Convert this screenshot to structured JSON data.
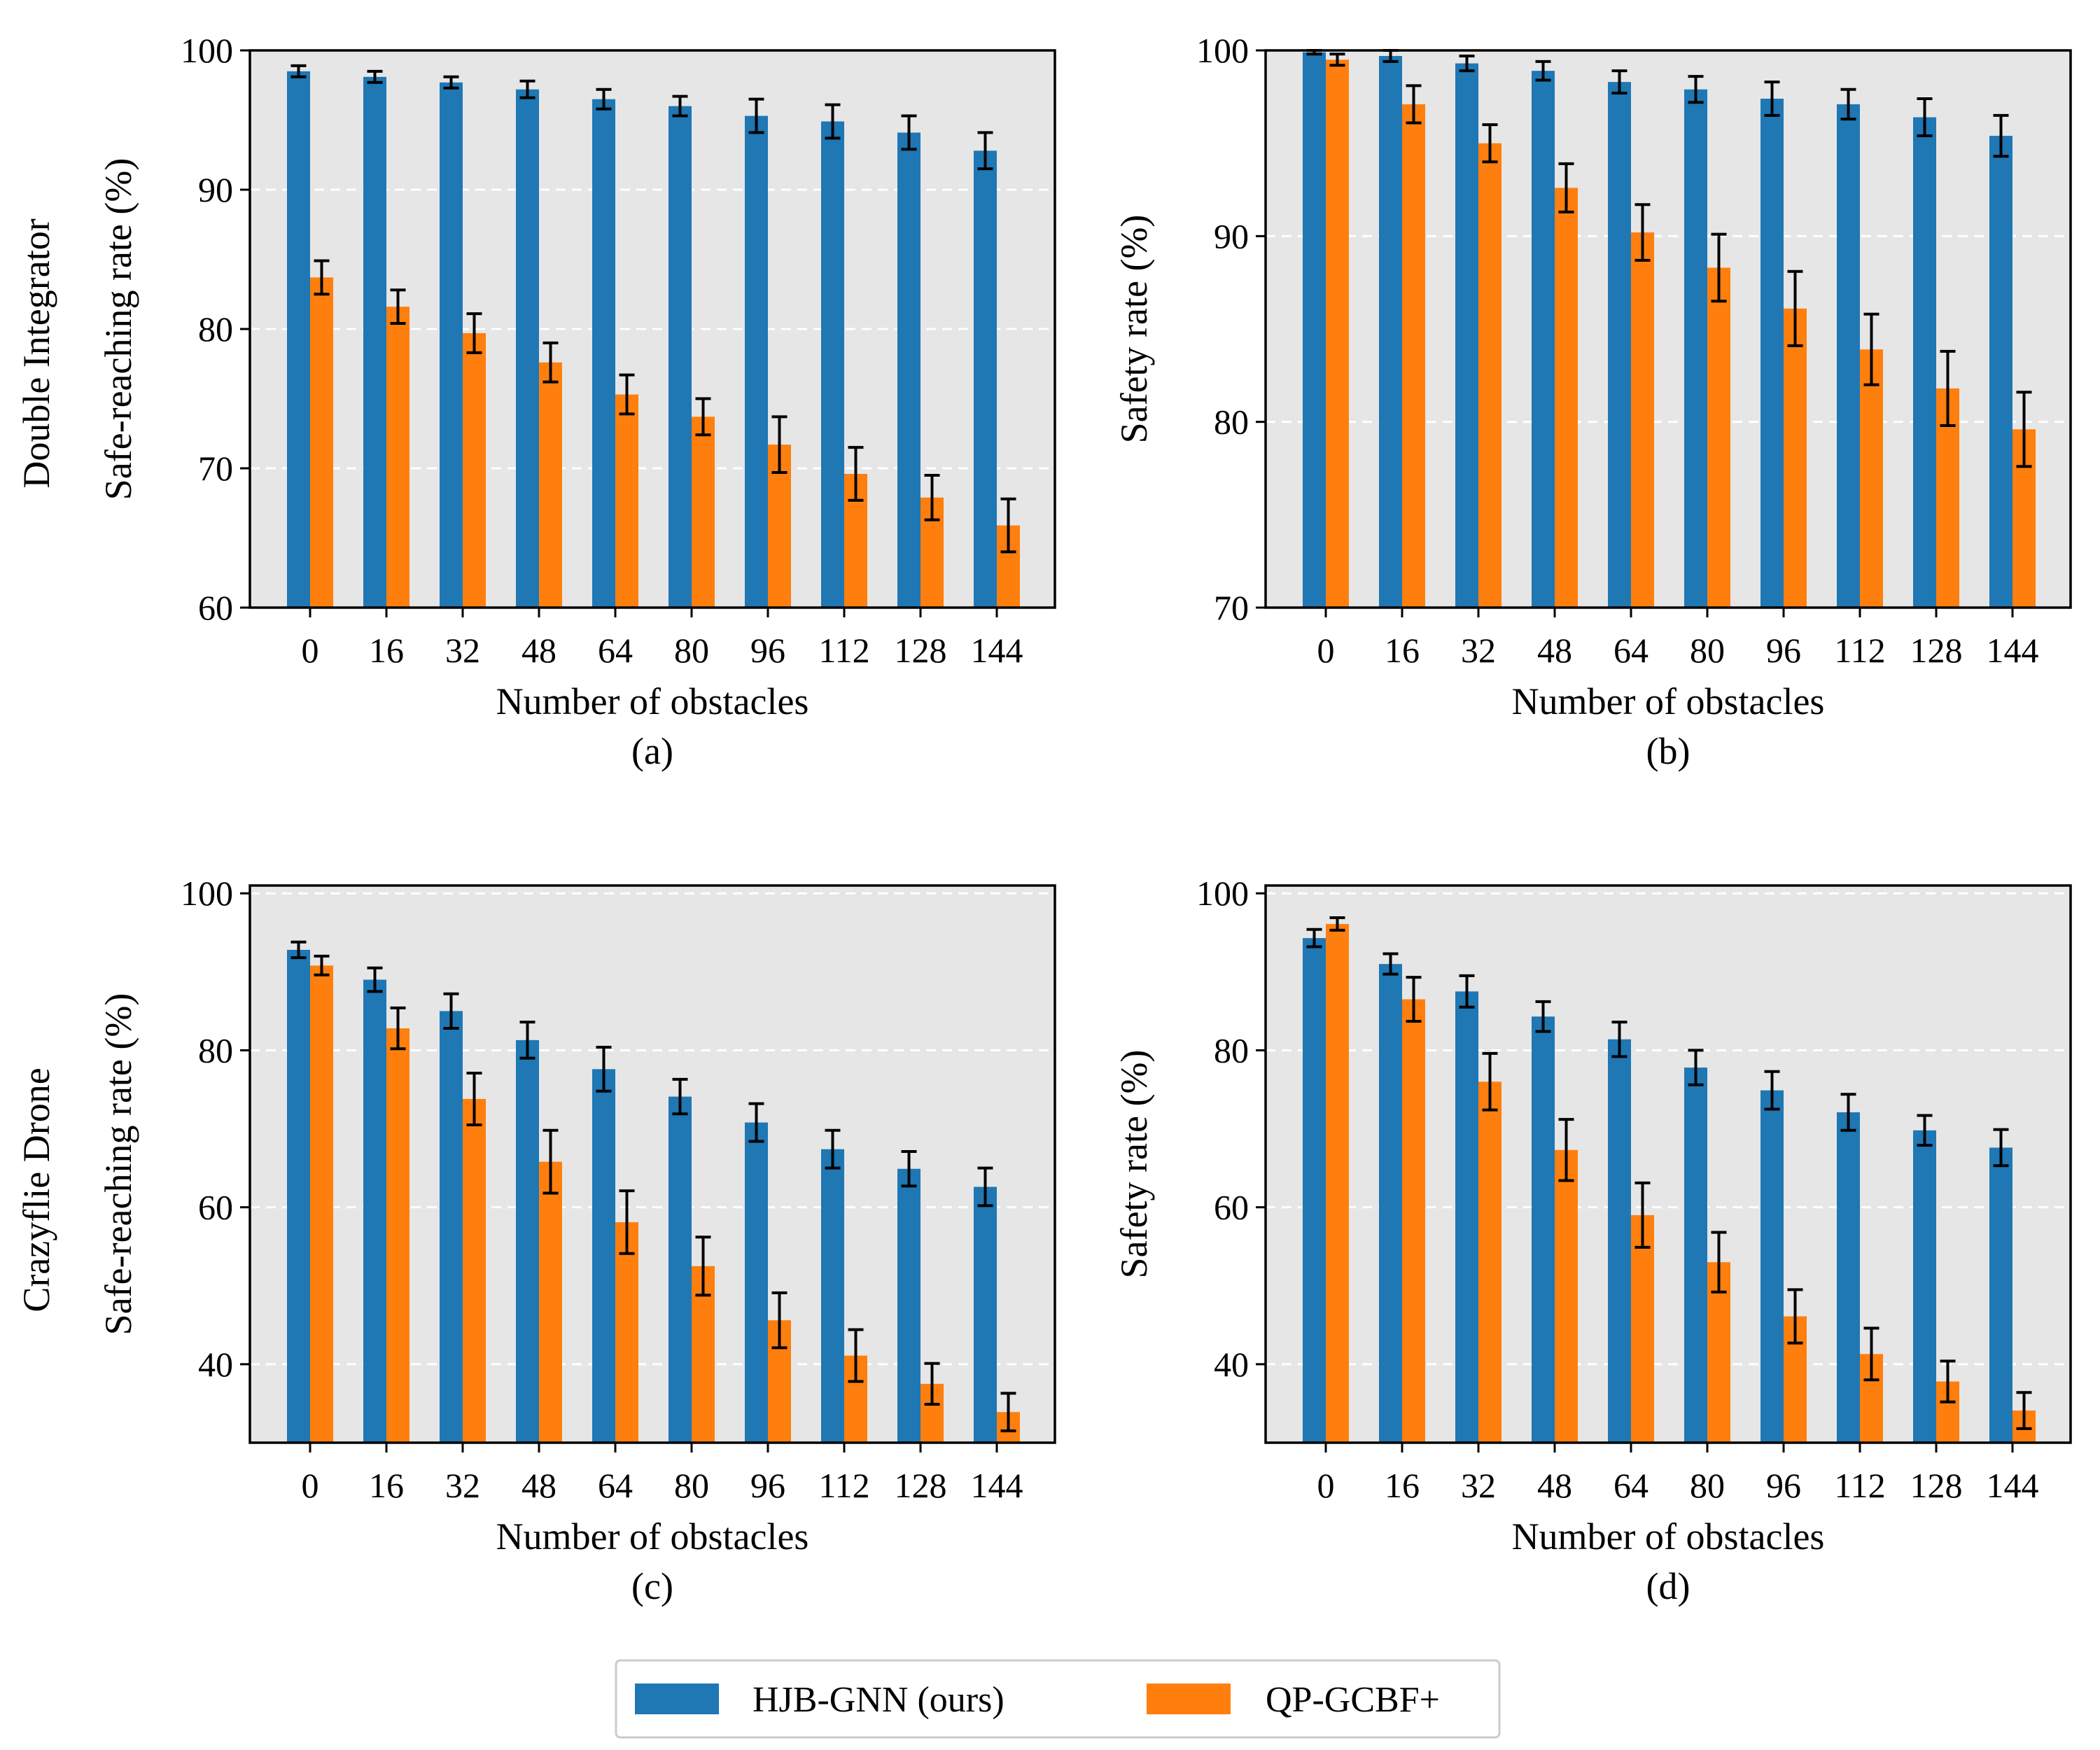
{
  "legend": {
    "colors": [
      "#1f77b4",
      "#ff7f0e"
    ],
    "entries": [
      "HJB-GNN (ours)",
      "QP-GCBF+"
    ]
  },
  "row_labels": [
    "Double Integrator",
    "Crazyflie Drone"
  ],
  "chart_data": [
    {
      "type": "bar",
      "caption": "(a)",
      "xlabel": "Number of obstacles",
      "ylabel": "Safe-reaching rate (%)",
      "ylim": [
        60,
        100
      ],
      "yticks": [
        60,
        70,
        80,
        90,
        100
      ],
      "grid": "horizontal dashed",
      "categories": [
        "0",
        "16",
        "32",
        "48",
        "64",
        "80",
        "96",
        "112",
        "128",
        "144"
      ],
      "series": [
        {
          "name": "HJB-GNN (ours)",
          "values": [
            98.5,
            98.1,
            97.7,
            97.2,
            96.5,
            96.0,
            95.3,
            94.9,
            94.1,
            92.8
          ],
          "errors": [
            0.4,
            0.4,
            0.4,
            0.6,
            0.7,
            0.7,
            1.2,
            1.2,
            1.2,
            1.3
          ]
        },
        {
          "name": "QP-GCBF+",
          "values": [
            83.7,
            81.6,
            79.7,
            77.6,
            75.3,
            73.7,
            71.7,
            69.6,
            67.9,
            65.9
          ],
          "errors": [
            1.2,
            1.2,
            1.4,
            1.4,
            1.4,
            1.3,
            2.0,
            1.9,
            1.6,
            1.9
          ]
        }
      ]
    },
    {
      "type": "bar",
      "caption": "(b)",
      "xlabel": "Number of obstacles",
      "ylabel": "Safety rate (%)",
      "ylim": [
        70,
        100
      ],
      "yticks": [
        70,
        80,
        90,
        100
      ],
      "grid": "horizontal dashed",
      "categories": [
        "0",
        "16",
        "32",
        "48",
        "64",
        "80",
        "96",
        "112",
        "128",
        "144"
      ],
      "series": [
        {
          "name": "HJB-GNN (ours)",
          "values": [
            99.9,
            99.7,
            99.3,
            98.9,
            98.3,
            97.9,
            97.4,
            97.1,
            96.4,
            95.4
          ],
          "errors": [
            0.1,
            0.3,
            0.4,
            0.5,
            0.6,
            0.7,
            0.9,
            0.8,
            1.0,
            1.1
          ]
        },
        {
          "name": "QP-GCBF+",
          "values": [
            99.5,
            97.1,
            95.0,
            92.6,
            90.2,
            88.3,
            86.1,
            83.9,
            81.8,
            79.6
          ],
          "errors": [
            0.3,
            1.0,
            1.0,
            1.3,
            1.5,
            1.8,
            2.0,
            1.9,
            2.0,
            2.0
          ]
        }
      ]
    },
    {
      "type": "bar",
      "caption": "(c)",
      "xlabel": "Number of obstacles",
      "ylabel": "Safe-reaching rate (%)",
      "ylim": [
        30,
        101
      ],
      "yticks": [
        40,
        60,
        80,
        100
      ],
      "grid": "horizontal dashed",
      "categories": [
        "0",
        "16",
        "32",
        "48",
        "64",
        "80",
        "96",
        "112",
        "128",
        "144"
      ],
      "series": [
        {
          "name": "HJB-GNN (ours)",
          "values": [
            92.8,
            89.0,
            85.0,
            81.3,
            77.6,
            74.1,
            70.8,
            67.4,
            64.9,
            62.6
          ],
          "errors": [
            1.0,
            1.5,
            2.2,
            2.3,
            2.8,
            2.2,
            2.4,
            2.4,
            2.2,
            2.4
          ]
        },
        {
          "name": "QP-GCBF+",
          "values": [
            90.8,
            82.8,
            73.8,
            65.8,
            58.1,
            52.5,
            45.6,
            41.1,
            37.5,
            33.9
          ],
          "errors": [
            1.2,
            2.6,
            3.3,
            4.0,
            4.0,
            3.7,
            3.5,
            3.3,
            2.6,
            2.4
          ]
        }
      ]
    },
    {
      "type": "bar",
      "caption": "(d)",
      "xlabel": "Number of obstacles",
      "ylabel": "Safety rate (%)",
      "ylim": [
        30,
        101
      ],
      "yticks": [
        40,
        60,
        80,
        100
      ],
      "grid": "horizontal dashed",
      "categories": [
        "0",
        "16",
        "32",
        "48",
        "64",
        "80",
        "96",
        "112",
        "128",
        "144"
      ],
      "series": [
        {
          "name": "HJB-GNN (ours)",
          "values": [
            94.3,
            91.0,
            87.5,
            84.3,
            81.4,
            77.8,
            74.9,
            72.1,
            69.8,
            67.6
          ],
          "errors": [
            1.1,
            1.3,
            2.0,
            1.9,
            2.2,
            2.2,
            2.4,
            2.3,
            1.9,
            2.3
          ]
        },
        {
          "name": "QP-GCBF+",
          "values": [
            96.1,
            86.5,
            76.0,
            67.3,
            59.0,
            53.0,
            46.1,
            41.3,
            37.8,
            34.1
          ],
          "errors": [
            0.8,
            2.8,
            3.6,
            3.9,
            4.1,
            3.8,
            3.4,
            3.3,
            2.6,
            2.3
          ]
        }
      ]
    }
  ]
}
